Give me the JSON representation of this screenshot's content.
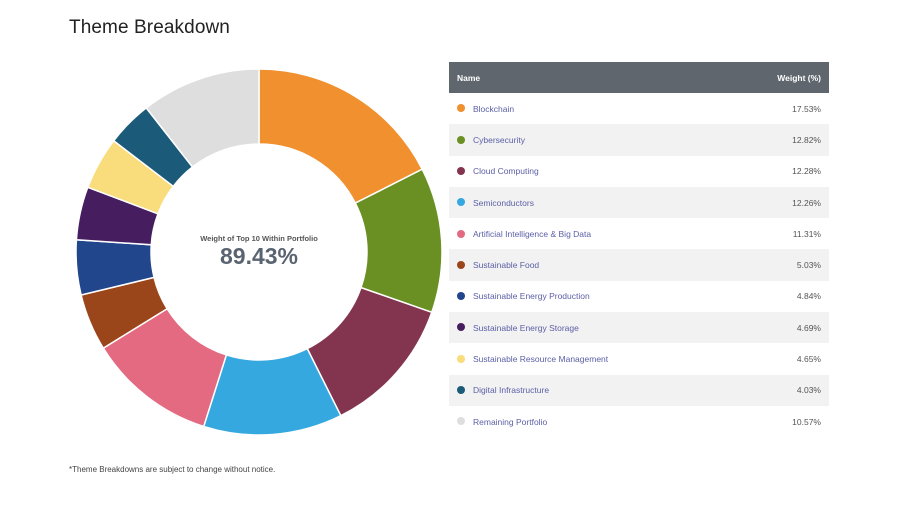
{
  "title": "Theme Breakdown",
  "footnote": "*Theme Breakdowns are subject to change without notice.",
  "center": {
    "label": "Weight of Top 10 Within Portfolio",
    "value": "89.43%"
  },
  "table": {
    "header_name": "Name",
    "header_weight": "Weight (%)"
  },
  "chart_data": {
    "type": "pie",
    "variant": "donut",
    "title": "Theme Breakdown",
    "center_label": "Weight of Top 10 Within Portfolio",
    "center_value": "89.43%",
    "slices": [
      {
        "name": "Blockchain",
        "value": 17.53,
        "display": "17.53%",
        "color": "#f0902f"
      },
      {
        "name": "Cybersecurity",
        "value": 12.82,
        "display": "12.82%",
        "color": "#6a8f23"
      },
      {
        "name": "Cloud Computing",
        "value": 12.28,
        "display": "12.28%",
        "color": "#83344e"
      },
      {
        "name": "Semiconductors",
        "value": 12.26,
        "display": "12.26%",
        "color": "#35a8df"
      },
      {
        "name": "Artificial Intelligence & Big Data",
        "value": 11.31,
        "display": "11.31%",
        "color": "#e46a81"
      },
      {
        "name": "Sustainable Food",
        "value": 5.03,
        "display": "5.03%",
        "color": "#9b451b"
      },
      {
        "name": "Sustainable Energy Production",
        "value": 4.84,
        "display": "4.84%",
        "color": "#22468b"
      },
      {
        "name": "Sustainable Energy Storage",
        "value": 4.69,
        "display": "4.69%",
        "color": "#461d5f"
      },
      {
        "name": "Sustainable Resource Management",
        "value": 4.65,
        "display": "4.65%",
        "color": "#f9dc7b"
      },
      {
        "name": "Digital Infrastructure",
        "value": 4.03,
        "display": "4.03%",
        "color": "#1b5b79"
      },
      {
        "name": "Remaining Portfolio",
        "value": 10.57,
        "display": "10.57%",
        "color": "#dedede"
      }
    ]
  }
}
